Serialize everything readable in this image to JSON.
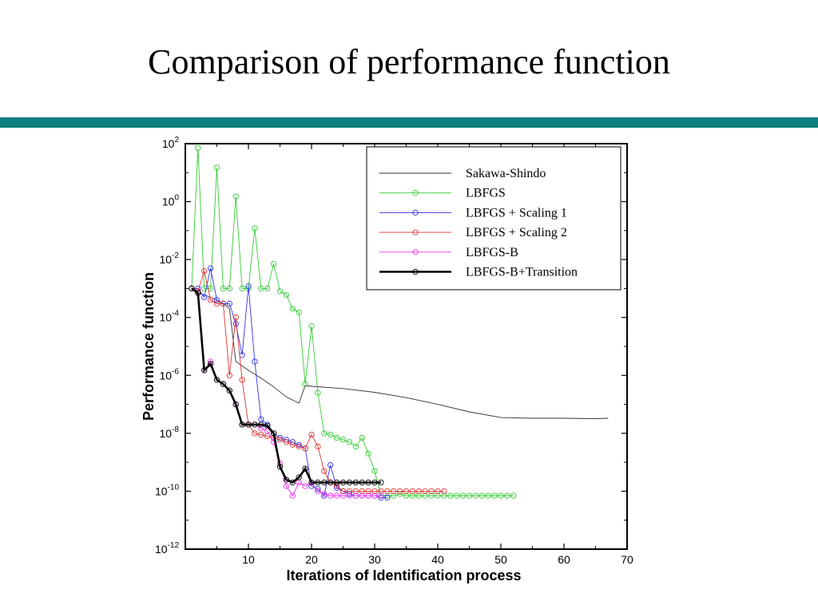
{
  "slide": {
    "title": "Comparison of performance function",
    "bar_color": "#0f7f7f"
  },
  "chart_data": {
    "type": "line",
    "title": "",
    "xlabel": "Iterations of Identification process",
    "ylabel": "Performance function",
    "xlim": [
      0,
      70
    ],
    "ylim": [
      1e-12,
      100
    ],
    "y_scale": "log",
    "x_ticks": [
      10,
      20,
      30,
      40,
      50,
      60,
      70
    ],
    "y_ticks": [
      {
        "value": 100,
        "mantissa": "10",
        "exp": "2"
      },
      {
        "value": 1,
        "mantissa": "10",
        "exp": "0"
      },
      {
        "value": 0.01,
        "mantissa": "10",
        "exp": "-2"
      },
      {
        "value": 0.0001,
        "mantissa": "10",
        "exp": "-4"
      },
      {
        "value": 1e-06,
        "mantissa": "10",
        "exp": "-6"
      },
      {
        "value": 1e-08,
        "mantissa": "10",
        "exp": "-8"
      },
      {
        "value": 1e-10,
        "mantissa": "10",
        "exp": "-10"
      },
      {
        "value": 1e-12,
        "mantissa": "10",
        "exp": "-12"
      }
    ],
    "grid": false,
    "legend_position": "top-right",
    "series": [
      {
        "name": "Sakawa-Shindo",
        "color": "#333333",
        "markers": false,
        "bold": false,
        "x": [
          1,
          2,
          3,
          4,
          5,
          6,
          7,
          8,
          10,
          12,
          14,
          16,
          18,
          19,
          20,
          25,
          30,
          35,
          40,
          45,
          50,
          55,
          60,
          65,
          67
        ],
        "y": [
          0.001,
          0.0007,
          0.0006,
          0.0005,
          0.0004,
          0.0003,
          0.0002,
          3e-06,
          1.5e-06,
          8e-07,
          4e-07,
          1.8e-07,
          1.1e-07,
          4.5e-07,
          4.2e-07,
          3.5e-07,
          2.6e-07,
          1.7e-07,
          1e-07,
          5.5e-08,
          3.5e-08,
          3.3e-08,
          3.3e-08,
          3.2e-08,
          3.3e-08
        ]
      },
      {
        "name": "LBFGS",
        "color": "#33cc33",
        "markers": true,
        "bold": false,
        "x": [
          1,
          2,
          3,
          4,
          5,
          6,
          7,
          8,
          9,
          10,
          11,
          12,
          13,
          14,
          15,
          16,
          17,
          18,
          19,
          20,
          21,
          22,
          23,
          24,
          25,
          26,
          27,
          28,
          29,
          30,
          31,
          32,
          33,
          34,
          35,
          36,
          37,
          38,
          39,
          40,
          41,
          42,
          43,
          44,
          45,
          46,
          47,
          48,
          49,
          50,
          51,
          52
        ],
        "y": [
          0.001,
          70,
          0.001,
          0.001,
          15,
          0.001,
          0.001,
          1.5,
          0.001,
          0.001,
          0.12,
          0.001,
          0.001,
          0.007,
          0.0008,
          0.0006,
          0.0002,
          0.00015,
          5e-07,
          5e-05,
          2.5e-07,
          1e-08,
          9e-09,
          7e-09,
          6e-09,
          5e-09,
          3.5e-09,
          7e-09,
          2e-09,
          5e-10,
          7e-11,
          7e-11,
          7e-11,
          8e-11,
          7e-11,
          7e-11,
          7e-11,
          7e-11,
          7e-11,
          7e-11,
          7e-11,
          7e-11,
          7e-11,
          7e-11,
          7e-11,
          7e-11,
          7e-11,
          7e-11,
          7e-11,
          7e-11,
          7e-11,
          7e-11
        ]
      },
      {
        "name": "LBFGS + Scaling 1",
        "color": "#3333ee",
        "markers": true,
        "bold": false,
        "x": [
          1,
          2,
          3,
          4,
          5,
          6,
          7,
          8,
          9,
          10,
          11,
          12,
          13,
          14,
          15,
          16,
          17,
          18,
          19,
          20,
          21,
          22,
          23,
          24,
          25,
          26,
          27,
          28,
          29,
          30,
          31,
          32
        ],
        "y": [
          0.001,
          0.001,
          0.0005,
          0.005,
          0.0004,
          0.0003,
          0.0003,
          6e-05,
          5e-06,
          0.0012,
          3e-06,
          3e-08,
          2e-08,
          1e-08,
          7e-09,
          6e-09,
          5e-09,
          4e-09,
          3e-09,
          1.5e-10,
          1.2e-10,
          7e-11,
          8e-10,
          1.3e-10,
          1e-10,
          8e-11,
          7e-11,
          7e-11,
          7e-11,
          7e-11,
          6e-11,
          6e-11
        ]
      },
      {
        "name": "LBFGS + Scaling 2",
        "color": "#dd3333",
        "markers": true,
        "bold": false,
        "x": [
          1,
          2,
          3,
          4,
          5,
          6,
          7,
          8,
          9,
          10,
          11,
          12,
          13,
          14,
          15,
          16,
          17,
          18,
          19,
          20,
          21,
          22,
          23,
          24,
          25,
          26,
          27,
          28,
          29,
          30,
          31,
          32,
          33,
          34,
          35,
          36,
          37,
          38,
          39,
          40,
          41
        ],
        "y": [
          0.001,
          0.0008,
          0.004,
          0.0004,
          0.0003,
          0.0003,
          1e-06,
          0.0001,
          7e-07,
          2e-08,
          1e-08,
          9e-09,
          8e-09,
          7e-09,
          6e-09,
          5e-09,
          4e-09,
          3.5e-09,
          3e-09,
          9e-09,
          3.5e-09,
          5e-10,
          2e-10,
          1.5e-10,
          1e-10,
          1e-10,
          1e-10,
          1e-10,
          1e-10,
          1e-10,
          1e-10,
          1e-10,
          1e-10,
          1e-10,
          1e-10,
          1e-10,
          1e-10,
          1e-10,
          1e-10,
          1e-10,
          1e-10
        ]
      },
      {
        "name": "LBFGS-B",
        "color": "#ee33ee",
        "markers": true,
        "bold": false,
        "x": [
          1,
          2,
          3,
          4,
          5,
          6,
          7,
          8,
          9,
          10,
          11,
          12,
          13,
          14,
          15,
          16,
          17,
          18,
          19,
          20,
          21,
          22,
          23,
          24,
          25,
          26,
          27,
          28,
          29,
          30,
          31
        ],
        "y": [
          0.001,
          0.0007,
          1.5e-06,
          3e-06,
          7e-07,
          5e-07,
          3e-07,
          1e-07,
          2e-08,
          2e-08,
          2e-08,
          1.5e-08,
          1.2e-08,
          5e-09,
          9e-10,
          1.5e-10,
          7e-11,
          2e-10,
          1.5e-10,
          2e-10,
          1e-10,
          8e-11,
          7e-11,
          7e-11,
          7e-11,
          7e-11,
          7e-11,
          7e-11,
          7e-11,
          7e-11,
          7e-11
        ]
      },
      {
        "name": "LBFGS-B+Transition",
        "color": "#000000",
        "markers": true,
        "bold": true,
        "x": [
          1,
          2,
          3,
          4,
          5,
          6,
          7,
          8,
          9,
          10,
          11,
          12,
          13,
          14,
          15,
          16,
          17,
          18,
          19,
          20,
          21,
          22,
          23,
          24,
          25,
          26,
          27,
          28,
          29,
          30,
          31
        ],
        "y": [
          0.001,
          0.0007,
          1.5e-06,
          2.5e-06,
          7e-07,
          5e-07,
          3e-07,
          1e-07,
          2e-08,
          2e-08,
          2e-08,
          2e-08,
          1.8e-08,
          1e-08,
          7e-10,
          2.5e-10,
          2e-10,
          3e-10,
          6e-10,
          2e-10,
          2e-10,
          2e-10,
          2e-10,
          2e-10,
          2e-10,
          2e-10,
          2e-10,
          2e-10,
          2e-10,
          2e-10,
          2e-10
        ]
      }
    ]
  }
}
